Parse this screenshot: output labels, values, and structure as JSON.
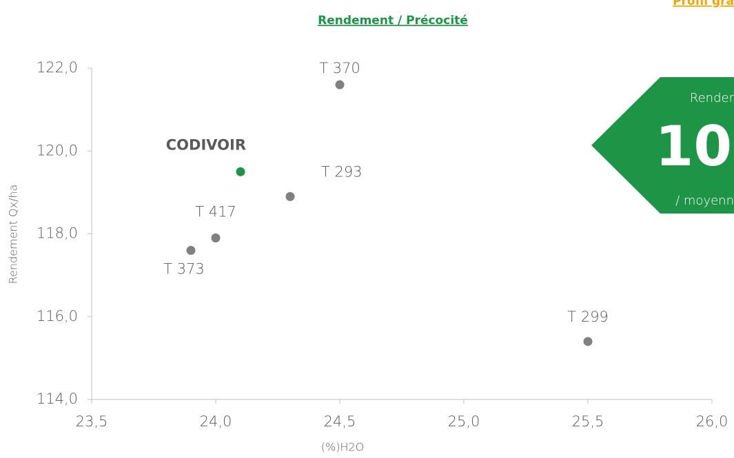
{
  "chart_data": {
    "type": "scatter",
    "title": "Rendement / Précocité",
    "link": "Profil gra",
    "x_label": "(%)H2O",
    "y_label": "Rendement Qx/ha",
    "labels": [
      "CODIVOIR",
      "T 293",
      "T 370",
      "T 417",
      "T 373",
      "T 299"
    ],
    "x": [
      24.1,
      24.3,
      24.5,
      24.0,
      23.9,
      25.5
    ],
    "values": [
      119.5,
      118.9,
      121.6,
      117.9,
      117.6,
      115.4
    ],
    "colors": [
      "#1e9447",
      "#808080",
      "#808080",
      "#808080",
      "#808080",
      "#808080"
    ],
    "xlim": [
      23.5,
      26.0
    ],
    "xticks": [
      {
        "value": 23.5,
        "label": "23,5"
      },
      {
        "value": 24.0,
        "label": "24,0"
      },
      {
        "value": 24.5,
        "label": "24,5"
      },
      {
        "value": 25.0,
        "label": "25,0"
      },
      {
        "value": 25.5,
        "label": "25,5"
      },
      {
        "value": 26.0,
        "label": "26,0"
      }
    ],
    "ylim": [
      114,
      122
    ],
    "yticks": [
      {
        "value": 114,
        "label": "114,0"
      },
      {
        "value": 116,
        "label": "116,0"
      },
      {
        "value": 118,
        "label": "118,0"
      },
      {
        "value": 120,
        "label": "120,0"
      },
      {
        "value": 122,
        "label": "122,0"
      }
    ],
    "badge": {
      "top": "Render",
      "big": "10",
      "bottom": "/ moyenn",
      "color": "#1e9447"
    }
  }
}
